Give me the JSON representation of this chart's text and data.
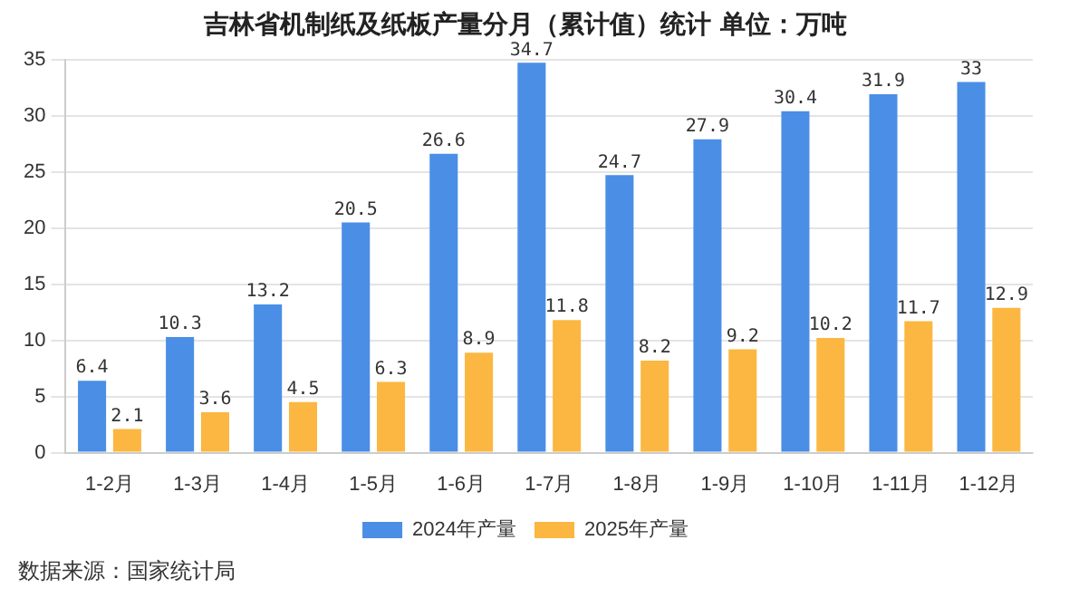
{
  "chart_data": {
    "type": "bar",
    "title": "吉林省机制纸及纸板产量分月（累计值）统计 单位：万吨",
    "categories": [
      "1-2月",
      "1-3月",
      "1-4月",
      "1-5月",
      "1-6月",
      "1-7月",
      "1-8月",
      "1-9月",
      "1-10月",
      "1-11月",
      "1-12月"
    ],
    "series": [
      {
        "name": "2024年产量",
        "color": "#4a8ee6",
        "values": [
          6.4,
          10.3,
          13.2,
          20.5,
          26.6,
          34.7,
          24.7,
          27.9,
          30.4,
          31.9,
          33
        ]
      },
      {
        "name": "2025年产量",
        "color": "#fbb741",
        "values": [
          2.1,
          3.6,
          4.5,
          6.3,
          8.9,
          11.8,
          8.2,
          9.2,
          10.2,
          11.7,
          12.9
        ]
      }
    ],
    "ylim": [
      0,
      35
    ],
    "yticks": [
      0,
      5,
      10,
      15,
      20,
      25,
      30,
      35
    ],
    "grid": "y",
    "legend": "bottom",
    "data_labels": true,
    "annotations": [
      "数据来源：国家统计局"
    ]
  }
}
